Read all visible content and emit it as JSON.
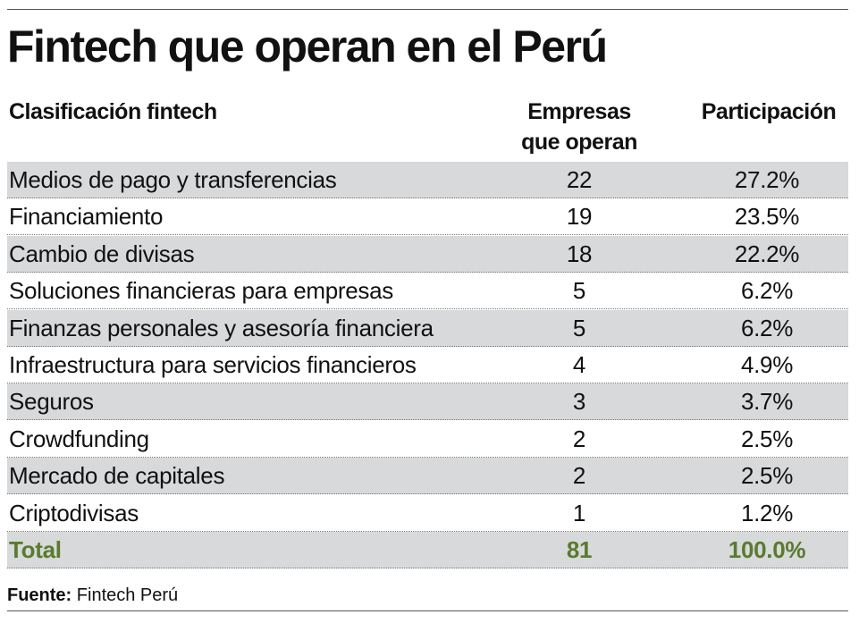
{
  "header": {
    "title": "Fintech que operan en el Perú"
  },
  "table": {
    "columns": [
      "Clasificación fintech",
      "Empresas que operan",
      "Participación"
    ],
    "rows": [
      [
        "Medios de pago y transferencias",
        "22",
        "27.2%"
      ],
      [
        "Financiamiento",
        "19",
        "23.5%"
      ],
      [
        "Cambio de divisas",
        "18",
        "22.2%"
      ],
      [
        "Soluciones financieras para empresas",
        "5",
        "6.2%"
      ],
      [
        "Finanzas personales y asesoría financiera",
        "5",
        "6.2%"
      ],
      [
        "Infraestructura para servicios financieros",
        "4",
        "4.9%"
      ],
      [
        "Seguros",
        "3",
        "3.7%"
      ],
      [
        "Crowdfunding",
        "2",
        "2.5%"
      ],
      [
        "Mercado de capitales",
        "2",
        "2.5%"
      ],
      [
        "Criptodivisas",
        "1",
        "1.2%"
      ]
    ],
    "total": [
      "Total",
      "81",
      "100.0%"
    ]
  },
  "source": {
    "label": "Fuente:",
    "text": "Fintech Perú"
  }
}
